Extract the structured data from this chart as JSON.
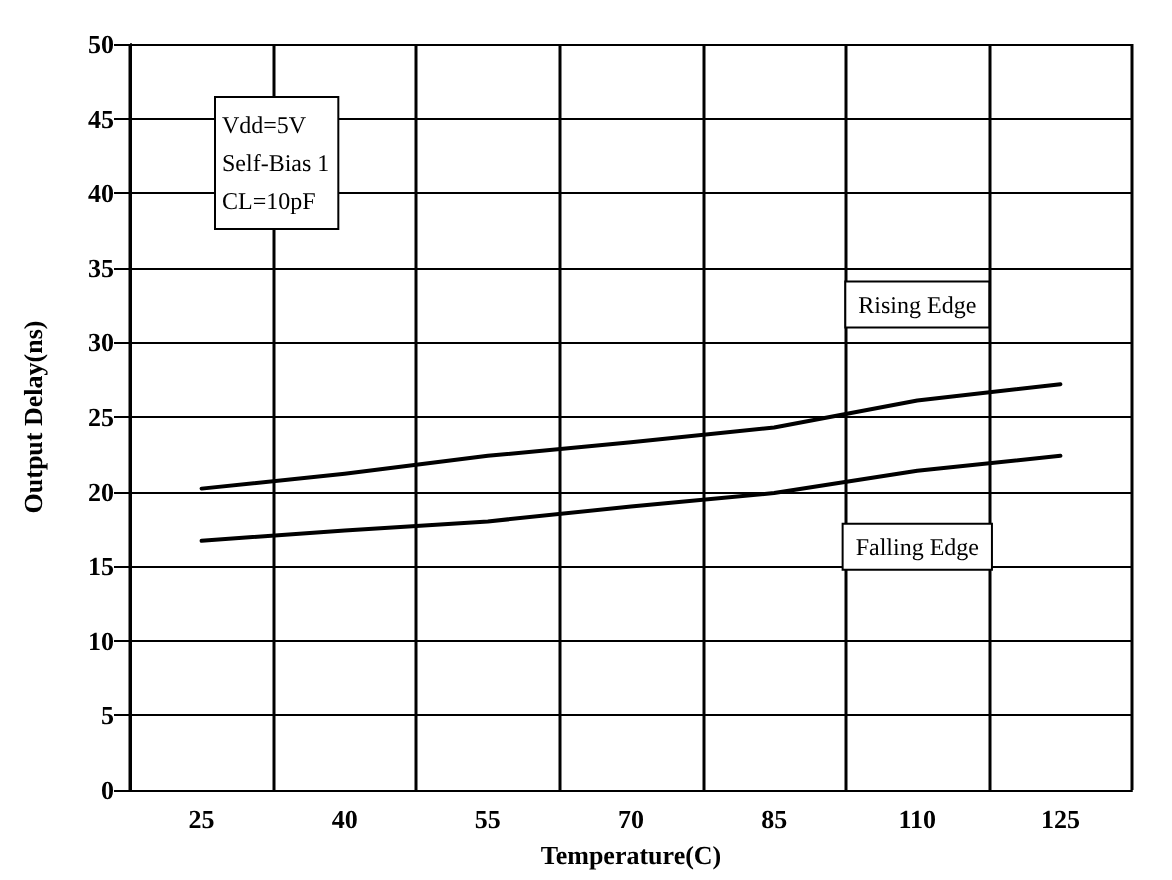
{
  "chart_data": {
    "type": "line",
    "xlabel": "Temperature(C)",
    "ylabel": "Output Delay(ns)",
    "categories": [
      "25",
      "40",
      "55",
      "70",
      "85",
      "110",
      "125"
    ],
    "series": [
      {
        "name": "Rising Edge",
        "color": "#000000",
        "values": [
          20.2,
          21.2,
          22.4,
          23.3,
          24.3,
          26.1,
          27.2
        ]
      },
      {
        "name": "Falling Edge",
        "color": "#000000",
        "values": [
          16.7,
          17.4,
          18.0,
          19.0,
          19.9,
          21.4,
          22.4
        ]
      }
    ],
    "ylim": [
      0,
      50
    ],
    "yticks": [
      0,
      5,
      10,
      15,
      20,
      25,
      30,
      35,
      40,
      45,
      50
    ],
    "annotations": [
      "Vdd=5V\nSelf-Bias 1\nCL=10pF"
    ],
    "grid": true,
    "legend": false,
    "marker": "none",
    "line_style": "solid"
  }
}
